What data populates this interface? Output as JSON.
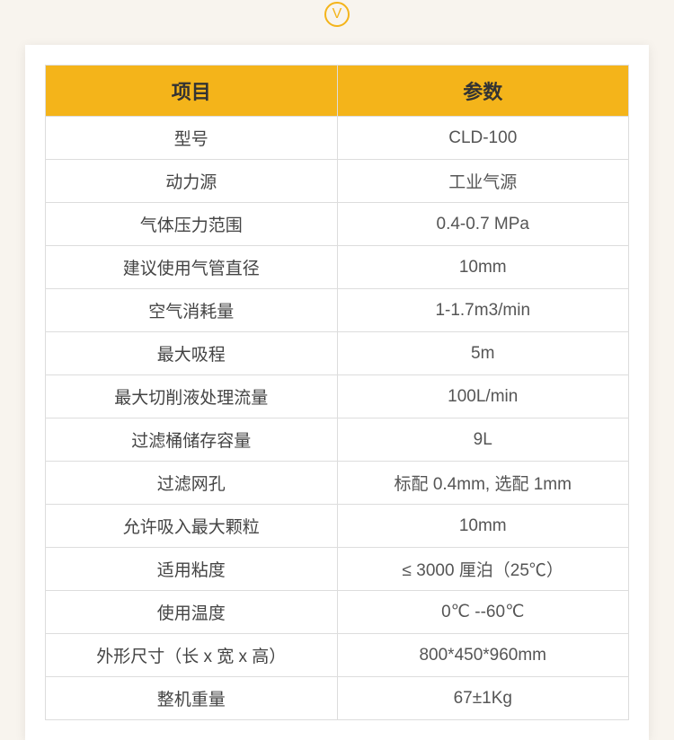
{
  "badge": {
    "letter": "V"
  },
  "table": {
    "header_bg": "#f4b41a",
    "border_color": "#dddddd",
    "cell_bg": "#ffffff",
    "text_color": "#555555",
    "header_text_color": "#333333",
    "font_size_header": 22,
    "font_size_cell": 19,
    "columns": [
      "项目",
      "参数"
    ],
    "rows": [
      [
        "型号",
        "CLD-100"
      ],
      [
        "动力源",
        "工业气源"
      ],
      [
        "气体压力范围",
        "0.4-0.7 MPa"
      ],
      [
        "建议使用气管直径",
        "10mm"
      ],
      [
        "空气消耗量",
        "1-1.7m3/min"
      ],
      [
        "最大吸程",
        "5m"
      ],
      [
        "最大切削液处理流量",
        "100L/min"
      ],
      [
        "过滤桶储存容量",
        "9L"
      ],
      [
        "过滤网孔",
        "标配 0.4mm, 选配 1mm"
      ],
      [
        "允许吸入最大颗粒",
        "10mm"
      ],
      [
        "适用粘度",
        "≤ 3000 厘泊（25℃）"
      ],
      [
        "使用温度",
        "0℃ --60℃"
      ],
      [
        "外形尺寸（长 x 宽 x 高）",
        "800*450*960mm"
      ],
      [
        "整机重量",
        "67±1Kg"
      ]
    ]
  },
  "page": {
    "background_color": "#f8f4ee",
    "card_bg": "#ffffff"
  }
}
